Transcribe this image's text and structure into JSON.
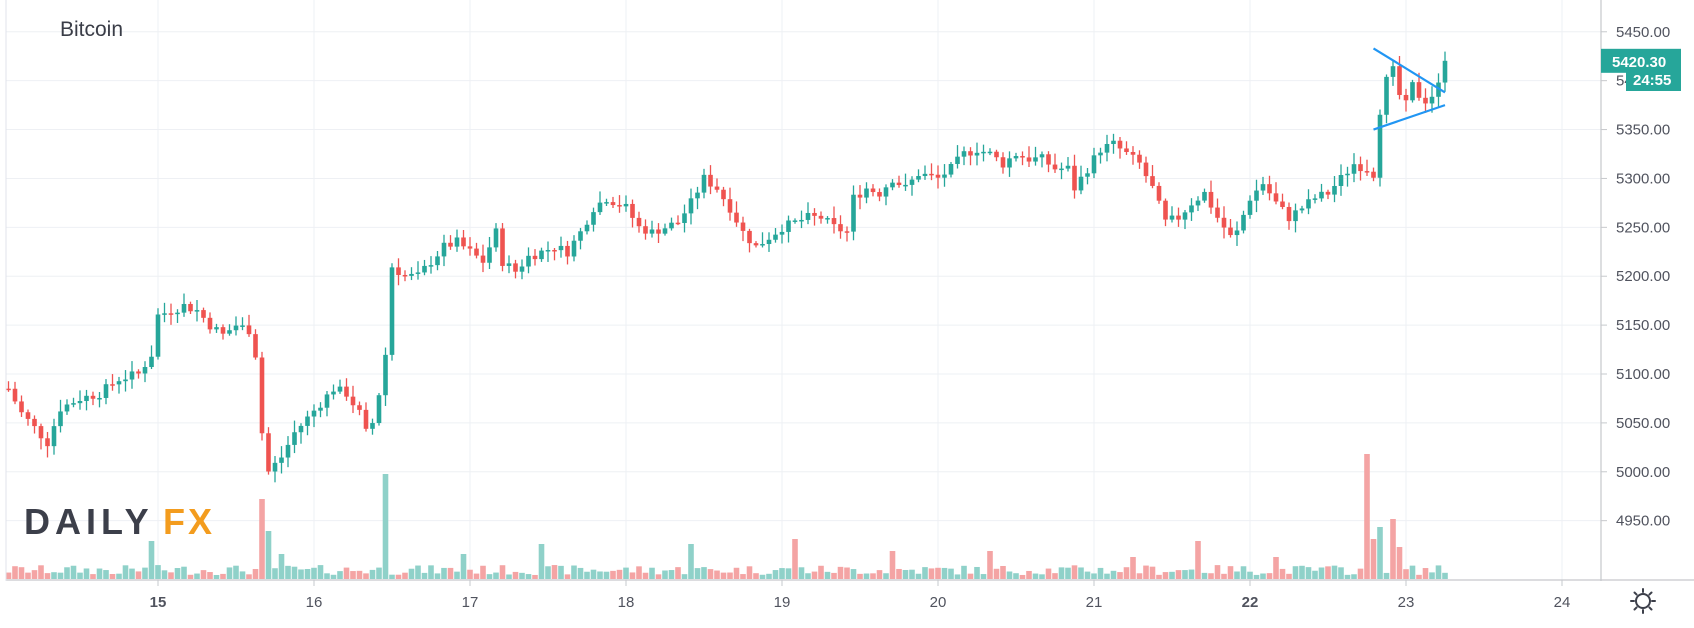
{
  "chart_data": {
    "type": "candlestick",
    "title": "Bitcoin",
    "ylim": [
      4920,
      5460
    ],
    "y_ticks": [
      "5450.00",
      "5400.00",
      "5350.00",
      "5300.00",
      "5250.00",
      "5200.00",
      "5150.00",
      "5100.00",
      "5050.00",
      "5000.00",
      "4950.00"
    ],
    "x_ticks": [
      {
        "label": "15",
        "bold": true,
        "hour": 0
      },
      {
        "label": "16",
        "bold": false,
        "hour": 24
      },
      {
        "label": "17",
        "bold": false,
        "hour": 48
      },
      {
        "label": "18",
        "bold": false,
        "hour": 72
      },
      {
        "label": "19",
        "bold": false,
        "hour": 96
      },
      {
        "label": "20",
        "bold": false,
        "hour": 120
      },
      {
        "label": "21",
        "bold": false,
        "hour": 144
      },
      {
        "label": "22",
        "bold": true,
        "hour": 168
      },
      {
        "label": "23",
        "bold": false,
        "hour": 192
      },
      {
        "label": "24",
        "bold": false,
        "hour": 216
      }
    ],
    "last_price": "5420.30",
    "countdown": "24:55",
    "colors": {
      "up": "#26a69a",
      "down": "#ef5350",
      "vol_up": "#8fd1c9",
      "vol_down": "#f4a4a4",
      "trendline": "#2196f3",
      "price_tag": "#26a69a"
    },
    "price_anchors": [
      [
        -23,
        5085
      ],
      [
        -21,
        5060
      ],
      [
        -19,
        5045
      ],
      [
        -17,
        5030
      ],
      [
        -15,
        5065
      ],
      [
        -12,
        5075
      ],
      [
        -9,
        5080
      ],
      [
        -6,
        5095
      ],
      [
        -3,
        5100
      ],
      [
        -1,
        5120
      ],
      [
        0,
        5160
      ],
      [
        2,
        5165
      ],
      [
        4,
        5170
      ],
      [
        6,
        5165
      ],
      [
        8,
        5150
      ],
      [
        10,
        5140
      ],
      [
        12,
        5150
      ],
      [
        14,
        5145
      ],
      [
        15,
        5120
      ],
      [
        16,
        5040
      ],
      [
        17,
        5000
      ],
      [
        19,
        5015
      ],
      [
        21,
        5040
      ],
      [
        23,
        5055
      ],
      [
        25,
        5070
      ],
      [
        27,
        5085
      ],
      [
        29,
        5080
      ],
      [
        31,
        5060
      ],
      [
        32,
        5040
      ],
      [
        33,
        5050
      ],
      [
        34,
        5080
      ],
      [
        35,
        5120
      ],
      [
        36,
        5210
      ],
      [
        38,
        5200
      ],
      [
        40,
        5200
      ],
      [
        42,
        5215
      ],
      [
        44,
        5230
      ],
      [
        46,
        5235
      ],
      [
        48,
        5225
      ],
      [
        50,
        5215
      ],
      [
        52,
        5245
      ],
      [
        53,
        5215
      ],
      [
        55,
        5205
      ],
      [
        57,
        5220
      ],
      [
        59,
        5225
      ],
      [
        61,
        5230
      ],
      [
        63,
        5225
      ],
      [
        65,
        5245
      ],
      [
        67,
        5270
      ],
      [
        69,
        5280
      ],
      [
        72,
        5270
      ],
      [
        74,
        5250
      ],
      [
        76,
        5245
      ],
      [
        78,
        5250
      ],
      [
        80,
        5255
      ],
      [
        82,
        5275
      ],
      [
        84,
        5300
      ],
      [
        86,
        5290
      ],
      [
        88,
        5270
      ],
      [
        90,
        5245
      ],
      [
        92,
        5230
      ],
      [
        94,
        5240
      ],
      [
        96,
        5250
      ],
      [
        98,
        5255
      ],
      [
        100,
        5260
      ],
      [
        102,
        5260
      ],
      [
        104,
        5250
      ],
      [
        106,
        5245
      ],
      [
        107,
        5280
      ],
      [
        109,
        5290
      ],
      [
        111,
        5285
      ],
      [
        113,
        5300
      ],
      [
        115,
        5290
      ],
      [
        117,
        5305
      ],
      [
        120,
        5300
      ],
      [
        122,
        5310
      ],
      [
        124,
        5325
      ],
      [
        126,
        5330
      ],
      [
        128,
        5325
      ],
      [
        130,
        5315
      ],
      [
        132,
        5325
      ],
      [
        134,
        5320
      ],
      [
        136,
        5320
      ],
      [
        138,
        5310
      ],
      [
        140,
        5310
      ],
      [
        141,
        5290
      ],
      [
        143,
        5310
      ],
      [
        145,
        5330
      ],
      [
        147,
        5335
      ],
      [
        149,
        5325
      ],
      [
        151,
        5315
      ],
      [
        153,
        5290
      ],
      [
        155,
        5255
      ],
      [
        157,
        5260
      ],
      [
        159,
        5275
      ],
      [
        161,
        5285
      ],
      [
        163,
        5260
      ],
      [
        165,
        5240
      ],
      [
        166,
        5245
      ],
      [
        168,
        5280
      ],
      [
        170,
        5295
      ],
      [
        172,
        5275
      ],
      [
        174,
        5260
      ],
      [
        176,
        5270
      ],
      [
        178,
        5280
      ],
      [
        180,
        5285
      ],
      [
        182,
        5300
      ],
      [
        184,
        5315
      ],
      [
        186,
        5310
      ],
      [
        187,
        5305
      ],
      [
        188,
        5370
      ],
      [
        189,
        5400
      ],
      [
        190,
        5410
      ],
      [
        191,
        5385
      ],
      [
        192,
        5375
      ],
      [
        193,
        5395
      ],
      [
        194,
        5385
      ],
      [
        195,
        5380
      ],
      [
        196,
        5385
      ],
      [
        197,
        5395
      ],
      [
        198,
        5420
      ]
    ],
    "volume_spikes": [
      [
        -7,
        5,
        "d"
      ],
      [
        -1,
        38,
        "u"
      ],
      [
        16,
        80,
        "d"
      ],
      [
        17,
        48,
        "u"
      ],
      [
        19,
        25,
        "u"
      ],
      [
        23,
        10,
        "u"
      ],
      [
        35,
        105,
        "u"
      ],
      [
        47,
        25,
        "u"
      ],
      [
        59,
        35,
        "u"
      ],
      [
        82,
        35,
        "u"
      ],
      [
        98,
        40,
        "d"
      ],
      [
        113,
        28,
        "d"
      ],
      [
        128,
        28,
        "d"
      ],
      [
        150,
        22,
        "d"
      ],
      [
        160,
        38,
        "d"
      ],
      [
        172,
        22,
        "d"
      ],
      [
        186,
        125,
        "d"
      ],
      [
        187,
        40,
        "d"
      ],
      [
        188,
        52,
        "u"
      ],
      [
        190,
        60,
        "d"
      ],
      [
        191,
        32,
        "d"
      ]
    ],
    "trendlines": [
      {
        "from": [
          187,
          5433
        ],
        "to": [
          198,
          5388
        ]
      },
      {
        "from": [
          187,
          5350
        ],
        "to": [
          198,
          5375
        ]
      }
    ]
  },
  "branding": {
    "logo_daily": "DAILY",
    "logo_fx": "FX"
  },
  "toolbar": {
    "settings_icon": "gear-icon"
  }
}
